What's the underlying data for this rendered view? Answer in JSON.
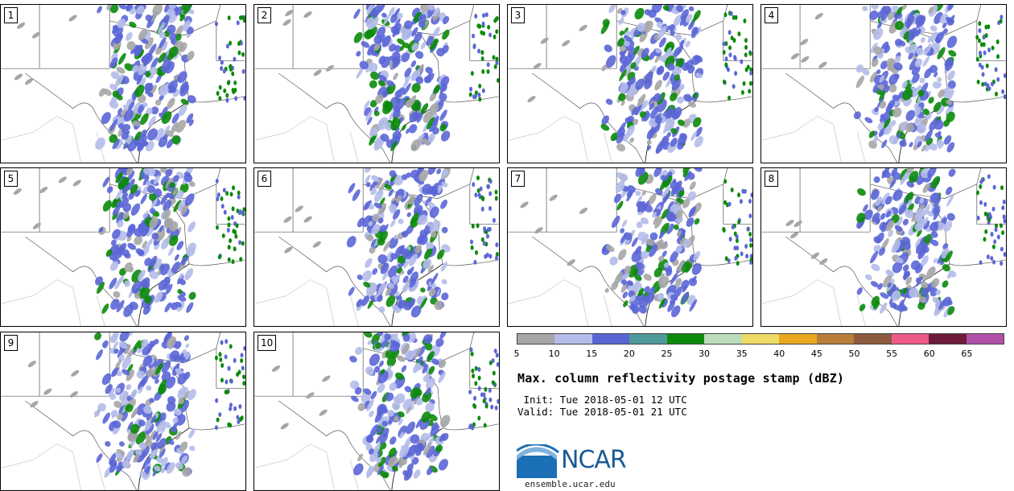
{
  "panels": [
    {
      "label": "1"
    },
    {
      "label": "2"
    },
    {
      "label": "3"
    },
    {
      "label": "4"
    },
    {
      "label": "5"
    },
    {
      "label": "6"
    },
    {
      "label": "7"
    },
    {
      "label": "8"
    },
    {
      "label": "9"
    },
    {
      "label": "10"
    }
  ],
  "colorbar": {
    "ticks": [
      "5",
      "10",
      "15",
      "20",
      "25",
      "30",
      "35",
      "40",
      "45",
      "50",
      "55",
      "60",
      "65"
    ],
    "colors": [
      "#a6a6a6",
      "#b4bde9",
      "#5b66d6",
      "#4e9a9a",
      "#0b8a0b",
      "#bcdcbc",
      "#eedc66",
      "#e8a820",
      "#b87e3a",
      "#8c5a3c",
      "#ef5a86",
      "#6e1a3c",
      "#b050a8"
    ]
  },
  "title": "Max. column reflectivity postage stamp (dBZ)",
  "init": " Init: Tue 2018-05-01 12 UTC",
  "valid": "Valid: Tue 2018-05-01 21 UTC",
  "logo": {
    "text": "NCAR",
    "color": "#1a5a96"
  },
  "site": "ensemble.ucar.edu"
}
